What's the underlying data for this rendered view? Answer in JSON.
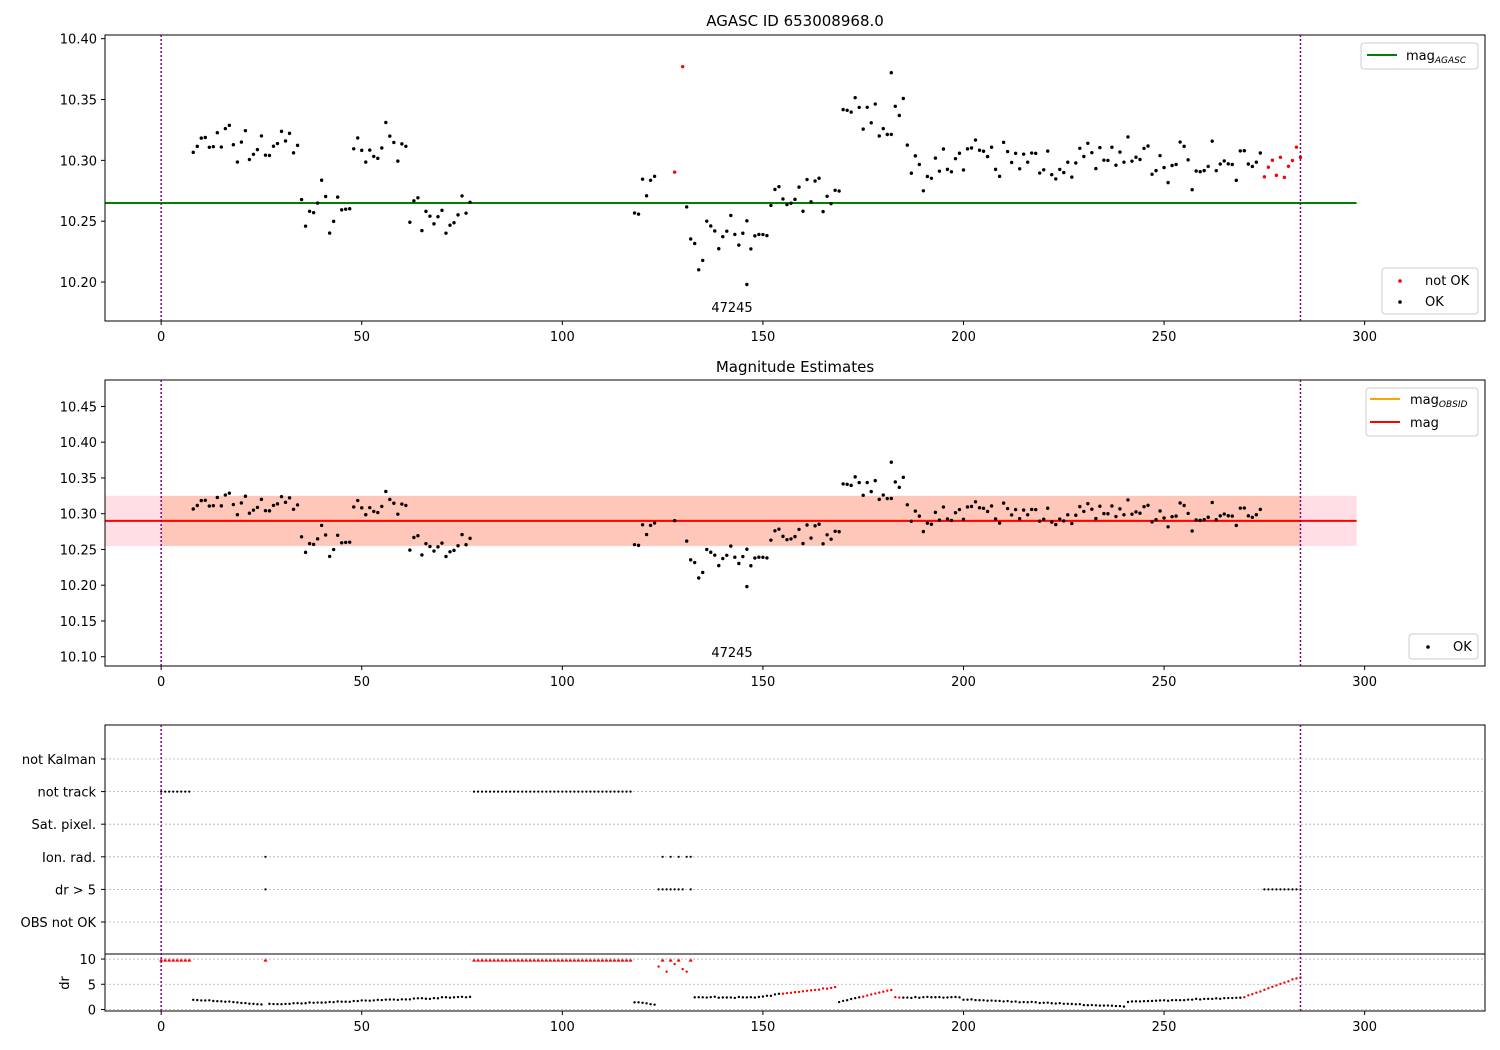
{
  "colors": {
    "ok": "#000000",
    "not_ok": "#ff0000",
    "agasc_line": "#008000",
    "mag_line": "#ff0000",
    "obsid_line": "#ffa500",
    "band_mag": "#ffc0cb",
    "band_obsid": "#ffa07a",
    "obsid_boundary": "#800080"
  },
  "chart_data": [
    {
      "type": "scatter",
      "title": "AGASC ID 653008968.0",
      "xlim": [
        -14,
        330
      ],
      "ylim": [
        10.168,
        10.403
      ],
      "xticks": [
        0,
        50,
        100,
        150,
        200,
        250,
        300
      ],
      "yticks": [
        10.2,
        10.25,
        10.3,
        10.35,
        10.4
      ],
      "ytick_labels": [
        "10.20",
        "10.25",
        "10.30",
        "10.35",
        "10.40"
      ],
      "annotation": "47245",
      "mag_agasc": 10.265,
      "legend_line": "mag",
      "legend_line_sub": "AGASC",
      "legend_points": [
        "not OK",
        "OK"
      ],
      "grid": false
    },
    {
      "type": "scatter",
      "title": "Magnitude Estimates",
      "xlim": [
        -14,
        330
      ],
      "ylim": [
        10.087,
        10.487
      ],
      "xticks": [
        0,
        50,
        100,
        150,
        200,
        250,
        300
      ],
      "yticks": [
        10.1,
        10.15,
        10.2,
        10.25,
        10.3,
        10.35,
        10.4,
        10.45
      ],
      "ytick_labels": [
        "10.10",
        "10.15",
        "10.20",
        "10.25",
        "10.30",
        "10.35",
        "10.40",
        "10.45"
      ],
      "annotation": "47245",
      "mag": 10.29,
      "mag_band": [
        10.255,
        10.325
      ],
      "obsid_band": [
        10.255,
        10.325
      ],
      "legend_lines": [
        {
          "main": "mag",
          "sub": "OBSID"
        },
        {
          "main": "mag",
          "sub": ""
        }
      ],
      "legend_points": [
        "OK"
      ],
      "grid": false
    },
    {
      "type": "scatter",
      "title": "",
      "xlim": [
        -14,
        330
      ],
      "xticks": [
        0,
        50,
        100,
        150,
        200,
        250,
        300
      ],
      "flag_categories": [
        "not Kalman",
        "not track",
        "Sat. pixel.",
        "Ion. rad.",
        "dr > 5",
        "OBS not OK"
      ],
      "flag_ranges": {
        "not track": [
          [
            0,
            7
          ],
          [
            78,
            117
          ]
        ],
        "Ion. rad.": [
          [
            26,
            26
          ],
          [
            125,
            125
          ],
          [
            127,
            127
          ],
          [
            129,
            129
          ],
          [
            131,
            132
          ]
        ],
        "dr > 5": [
          [
            0,
            0
          ],
          [
            26,
            26
          ],
          [
            124,
            130
          ],
          [
            132,
            132
          ],
          [
            275,
            284
          ]
        ]
      },
      "dr_ylabel": "dr",
      "dr_ylim": [
        -0.3,
        11
      ],
      "dr_yticks": [
        0,
        5,
        10
      ],
      "grid": true
    }
  ],
  "obsid_boundaries": [
    0,
    284
  ]
}
